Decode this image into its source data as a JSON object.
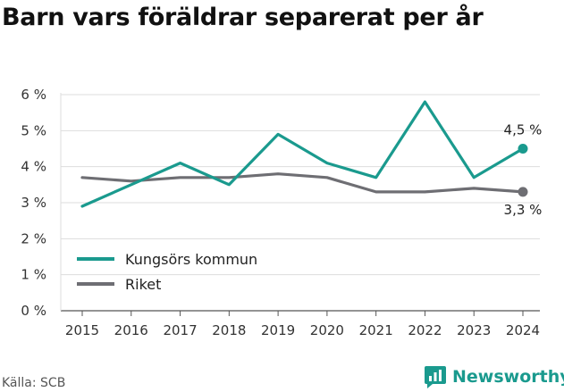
{
  "title": "Barn vars föräldrar separerat per år",
  "source": "Källa: SCB",
  "brand": {
    "name": "Newsworthy",
    "icon": "newsworthy-logo-icon",
    "color": "#1a9a8e"
  },
  "chart_data": {
    "type": "line",
    "x": [
      "2015",
      "2016",
      "2017",
      "2018",
      "2019",
      "2020",
      "2021",
      "2022",
      "2023",
      "2024"
    ],
    "ylim": [
      0,
      6
    ],
    "yticks": [
      0,
      1,
      2,
      3,
      4,
      5,
      6
    ],
    "ytick_labels": [
      "0 %",
      "1 %",
      "2 %",
      "3 %",
      "4 %",
      "5 %",
      "6 %"
    ],
    "grid": true,
    "legend_position": "bottom-left",
    "series": [
      {
        "name": "Kungsörs kommun",
        "color": "#1a9a8e",
        "values": [
          2.9,
          3.5,
          4.1,
          3.5,
          4.9,
          4.1,
          3.7,
          5.8,
          3.7,
          4.5
        ],
        "end_label": "4,5 %"
      },
      {
        "name": "Riket",
        "color": "#6e6e73",
        "values": [
          3.7,
          3.6,
          3.7,
          3.7,
          3.8,
          3.7,
          3.3,
          3.3,
          3.4,
          3.3
        ],
        "end_label": "3,3 %"
      }
    ]
  }
}
